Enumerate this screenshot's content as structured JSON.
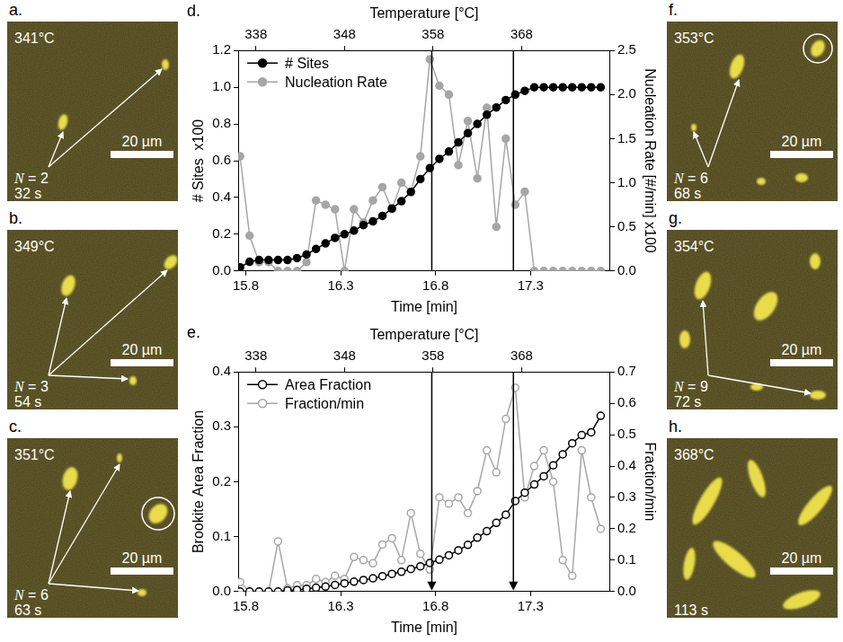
{
  "chart_data": [
    {
      "type": "line",
      "panel_label": "d.",
      "x_label": "Time [min]",
      "x2_label": "Temperature [°C]",
      "y_label": "# Sites  x100",
      "y2_label": "Nucleation Rate [#/min] x100",
      "x": [
        15.77,
        15.82,
        15.87,
        15.92,
        15.97,
        16.02,
        16.07,
        16.12,
        16.17,
        16.22,
        16.27,
        16.32,
        16.37,
        16.42,
        16.47,
        16.52,
        16.57,
        16.62,
        16.67,
        16.72,
        16.77,
        16.82,
        16.87,
        16.92,
        16.97,
        17.02,
        17.07,
        17.12,
        17.17,
        17.22,
        17.27,
        17.32,
        17.37,
        17.42,
        17.47,
        17.52,
        17.57,
        17.62,
        17.67
      ],
      "xlim": [
        15.76,
        17.72
      ],
      "xticks": [
        15.8,
        16.3,
        16.8,
        17.3
      ],
      "x2lim": [
        336,
        378
      ],
      "x2ticks": [
        338,
        348,
        358,
        368
      ],
      "ylim": [
        0,
        1.2
      ],
      "yticks": [
        {
          "value": 0,
          "label": "0.0"
        },
        0.2,
        0.4,
        0.6,
        0.8,
        {
          "value": 1,
          "label": "1.0"
        },
        1.2
      ],
      "y2lim": [
        0,
        2.5
      ],
      "y2ticks": [
        {
          "value": 0,
          "label": "0.0"
        },
        0.5,
        {
          "value": 1,
          "label": "1.0"
        },
        1.5,
        {
          "value": 2,
          "label": "2.0"
        },
        2.5
      ],
      "series": [
        {
          "name": "# Sites",
          "color": "#000000",
          "marker": "circle",
          "values": [
            0.02,
            0.05,
            0.06,
            0.06,
            0.06,
            0.06,
            0.07,
            0.09,
            0.12,
            0.15,
            0.18,
            0.2,
            0.22,
            0.25,
            0.27,
            0.3,
            0.34,
            0.38,
            0.43,
            0.5,
            0.56,
            0.61,
            0.65,
            0.7,
            0.75,
            0.8,
            0.85,
            0.89,
            0.93,
            0.96,
            0.98,
            1.0,
            1.0,
            1.0,
            1.0,
            1.0,
            1.0,
            1.0,
            1.0
          ]
        },
        {
          "name": "Nucleation Rate",
          "color": "#a6a6a6",
          "marker": "circle",
          "axis": "y2",
          "values": [
            1.3,
            0.4,
            0.1,
            0.1,
            0.0,
            0.0,
            0.0,
            0.1,
            0.8,
            0.75,
            0.7,
            0.0,
            0.7,
            0.55,
            0.8,
            0.95,
            0.7,
            1.0,
            0.9,
            1.3,
            2.4,
            2.1,
            2.0,
            1.2,
            1.7,
            1.05,
            1.85,
            0.5,
            1.5,
            0.75,
            0.9,
            0.0,
            0.0,
            0.0,
            0.0,
            0.0,
            0.0,
            0.0,
            0.0
          ]
        }
      ],
      "vlines": [
        16.78,
        17.21
      ],
      "legend": "top-left",
      "grid": false
    },
    {
      "type": "line",
      "panel_label": "e.",
      "x_label": "Time [min]",
      "x2_label": "Temperature [°C]",
      "y_label": "Brookite Area Fraction",
      "y2_label": "Fraction/min",
      "x": [
        15.77,
        15.82,
        15.87,
        15.92,
        15.97,
        16.02,
        16.07,
        16.12,
        16.17,
        16.22,
        16.27,
        16.32,
        16.37,
        16.42,
        16.47,
        16.52,
        16.57,
        16.62,
        16.67,
        16.72,
        16.77,
        16.82,
        16.87,
        16.92,
        16.97,
        17.02,
        17.07,
        17.12,
        17.17,
        17.22,
        17.27,
        17.32,
        17.37,
        17.42,
        17.47,
        17.52,
        17.57,
        17.62,
        17.67
      ],
      "xlim": [
        15.76,
        17.72
      ],
      "xticks": [
        15.8,
        16.3,
        16.8,
        17.3
      ],
      "x2lim": [
        336,
        378
      ],
      "x2ticks": [
        338,
        348,
        358,
        368
      ],
      "ylim": [
        0,
        0.4
      ],
      "yticks": [
        {
          "value": 0,
          "label": "0.0"
        },
        0.1,
        0.2,
        0.3,
        0.4
      ],
      "y2lim": [
        0,
        0.7
      ],
      "y2ticks": [
        {
          "value": 0,
          "label": "0.0"
        },
        0.1,
        0.2,
        0.3,
        0.4,
        0.5,
        0.6,
        0.7
      ],
      "series": [
        {
          "name": "Area Fraction",
          "color": "#000000",
          "marker": "open_circle",
          "values": [
            0.0,
            0.0,
            0.0,
            0.0,
            0.0,
            0.002,
            0.003,
            0.005,
            0.007,
            0.009,
            0.012,
            0.015,
            0.018,
            0.021,
            0.024,
            0.028,
            0.032,
            0.036,
            0.041,
            0.046,
            0.052,
            0.058,
            0.066,
            0.075,
            0.085,
            0.098,
            0.11,
            0.125,
            0.14,
            0.165,
            0.18,
            0.195,
            0.21,
            0.23,
            0.25,
            0.27,
            0.285,
            0.29,
            0.32
          ]
        },
        {
          "name": "Fraction/min",
          "color": "#a6a6a6",
          "marker": "open_circle",
          "axis": "y2",
          "values": [
            0.03,
            0.0,
            0.0,
            0.0,
            0.16,
            0.01,
            0.02,
            0.02,
            0.04,
            0.03,
            0.05,
            0.04,
            0.11,
            0.1,
            0.09,
            0.15,
            0.17,
            0.1,
            0.25,
            0.12,
            0.07,
            0.3,
            0.28,
            0.3,
            0.25,
            0.32,
            0.45,
            0.38,
            0.55,
            0.65,
            0.3,
            0.4,
            0.45,
            0.35,
            0.1,
            0.05,
            0.45,
            0.3,
            0.2
          ]
        }
      ],
      "vlines": [
        16.78,
        17.21
      ],
      "legend": "top-left",
      "grid": false
    }
  ],
  "image_panels": [
    {
      "letter": "a.",
      "temperature": "341°C",
      "count": "N = 2",
      "time": "32 s",
      "scale_bar": "20 µm"
    },
    {
      "letter": "b.",
      "temperature": "349°C",
      "count": "N = 3",
      "time": "54 s",
      "scale_bar": "20 µm"
    },
    {
      "letter": "c.",
      "temperature": "351°C",
      "count": "N = 6",
      "time": "63 s",
      "scale_bar": "20 µm"
    },
    {
      "letter": "f.",
      "temperature": "353°C",
      "count": "N = 6",
      "time": "68 s",
      "scale_bar": "20 µm"
    },
    {
      "letter": "g.",
      "temperature": "354°C",
      "count": "N = 9",
      "time": "72 s",
      "scale_bar": "20 µm"
    },
    {
      "letter": "h.",
      "temperature": "368°C",
      "time": "113 s",
      "scale_bar": "20 µm"
    }
  ]
}
